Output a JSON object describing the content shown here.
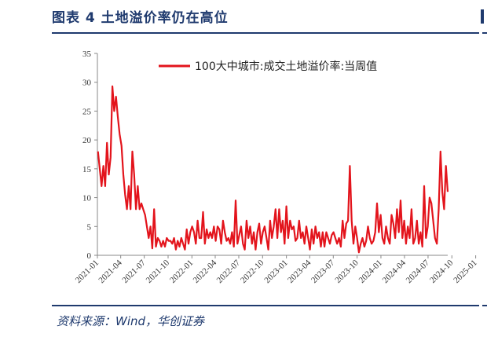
{
  "header": {
    "title": "图表 4    土地溢价率仍在高位"
  },
  "footer": {
    "source": "资料来源：Wind，华创证券"
  },
  "colors": {
    "brand": "#1f3a6e",
    "series": "#e3141c",
    "axis": "#888888"
  },
  "chart_data": {
    "type": "line",
    "title": "",
    "xlabel": "",
    "ylabel": "",
    "ylim": [
      0,
      35
    ],
    "yticks": [
      0,
      5,
      10,
      15,
      20,
      25,
      30,
      35
    ],
    "xticks": [
      "2021-01",
      "2021-04",
      "2021-07",
      "2021-10",
      "2022-01",
      "2022-04",
      "2022-07",
      "2022-10",
      "2023-01",
      "2023-04",
      "2023-07",
      "2023-10",
      "2024-01",
      "2024-04",
      "2024-07",
      "2024-10",
      "2025-01"
    ],
    "grid": false,
    "legend_position": "top",
    "series": [
      {
        "name": "100大中城市:成交土地溢价率:当周值",
        "frequency": "weekly",
        "start": "2021-01-03",
        "values": [
          18,
          15,
          12,
          15.5,
          12,
          19.5,
          14,
          17,
          29.3,
          25,
          27.5,
          24,
          21,
          19,
          14,
          10.5,
          8,
          12,
          8,
          18,
          14,
          8,
          12,
          8,
          9,
          8,
          7,
          5,
          3,
          5,
          1.2,
          8,
          1.5,
          3,
          2.5,
          1.5,
          2.5,
          1.5,
          3,
          2.5,
          2.5,
          2,
          3,
          1,
          2.5,
          1.5,
          3,
          2,
          1,
          4.5,
          2,
          4,
          5,
          4,
          2,
          6,
          3,
          3,
          7.5,
          2,
          4.5,
          3,
          4,
          3,
          5,
          2.5,
          5,
          4.5,
          2,
          6,
          4,
          2.5,
          3,
          2,
          4,
          1.5,
          9.5,
          2,
          3.5,
          5,
          2,
          1,
          6,
          3,
          5,
          2,
          4,
          1,
          4,
          5.5,
          2,
          4,
          5,
          3,
          1,
          6,
          3,
          5,
          8,
          3,
          8,
          4,
          6,
          2,
          8.5,
          3,
          6,
          4.5,
          5,
          2.5,
          3,
          6,
          3,
          4,
          2,
          5,
          3,
          1,
          4.5,
          2,
          5,
          3,
          4,
          1.5,
          4,
          1.5,
          4,
          3,
          2,
          3.5,
          4,
          3,
          2,
          3,
          1.5,
          6,
          3,
          5.5,
          6,
          15.5,
          6,
          2,
          5,
          3,
          0.5,
          2,
          3,
          1.5,
          2.5,
          5,
          3,
          2,
          2.5,
          4,
          9,
          4,
          7,
          3,
          2,
          5,
          3,
          2,
          7,
          5.5,
          3,
          8,
          4,
          9.5,
          3,
          6,
          2,
          5,
          3,
          8,
          2,
          3,
          6,
          2,
          4,
          1.5,
          12,
          3,
          5,
          10,
          9,
          6,
          3,
          2,
          8,
          18,
          11,
          8,
          15.5,
          11
        ]
      }
    ]
  }
}
